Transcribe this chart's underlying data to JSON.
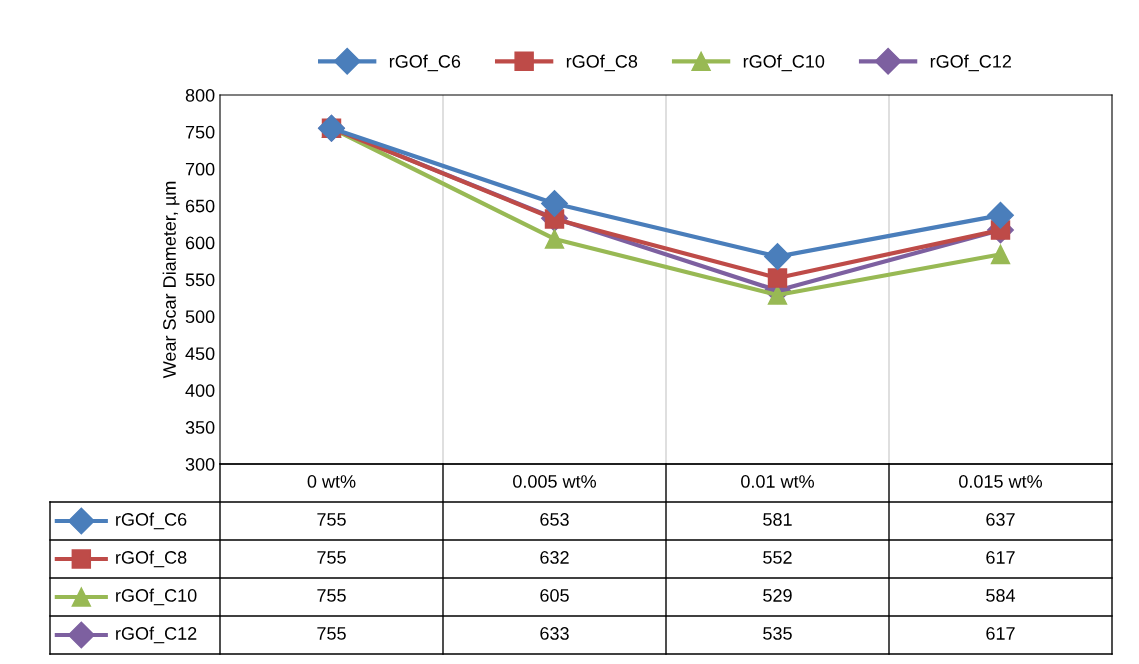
{
  "chart_data": {
    "type": "line",
    "ylabel": "Wear Scar Diameter, µm",
    "categories": [
      "0 wt%",
      "0.005 wt%",
      "0.01 wt%",
      "0.015 wt%"
    ],
    "series": [
      {
        "name": "rGOf_C6",
        "color": "#4a7ebb",
        "marker": "diamond",
        "values": [
          755,
          653,
          581,
          637
        ]
      },
      {
        "name": "rGOf_C8",
        "color": "#be4b48",
        "marker": "square",
        "values": [
          755,
          632,
          552,
          617
        ]
      },
      {
        "name": "rGOf_C10",
        "color": "#98b954",
        "marker": "triangle",
        "values": [
          755,
          605,
          529,
          584
        ]
      },
      {
        "name": "rGOf_C12",
        "color": "#7d60a0",
        "marker": "diamond",
        "values": [
          755,
          633,
          535,
          617
        ]
      }
    ],
    "ylim": [
      300,
      800
    ],
    "yticks": [
      300,
      350,
      400,
      450,
      500,
      550,
      600,
      650,
      700,
      750,
      800
    ],
    "grid": "x",
    "legend": "top",
    "data_labels": true,
    "line_style": "solid"
  }
}
